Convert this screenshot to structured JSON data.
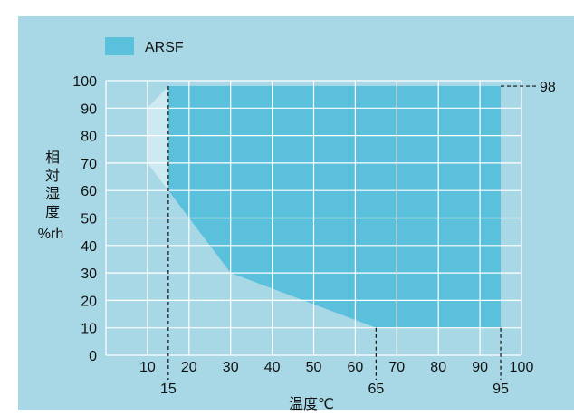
{
  "chart_data": {
    "type": "area",
    "title": "",
    "legend": {
      "placement": "top-left",
      "entries": [
        "ARSF"
      ]
    },
    "xlabel": "温度℃",
    "ylabel_chars": [
      "相",
      "対",
      "湿",
      "度"
    ],
    "ylabel_unit": "%rh",
    "xlim": [
      0,
      100
    ],
    "ylim": [
      0,
      100
    ],
    "x_ticks": [
      10,
      20,
      30,
      40,
      50,
      60,
      70,
      80,
      90,
      100
    ],
    "x_tick_labels": [
      "10",
      "20",
      "30",
      "40",
      "50",
      "60",
      "70",
      "80",
      "90",
      "100"
    ],
    "y_ticks": [
      0,
      10,
      20,
      30,
      40,
      50,
      60,
      70,
      80,
      90,
      100
    ],
    "y_tick_labels": [
      "0",
      "10",
      "20",
      "30",
      "40",
      "50",
      "60",
      "70",
      "80",
      "90",
      "100"
    ],
    "grid": true,
    "colors": {
      "background": "#a8d8e6",
      "area_light": "#cde9f1",
      "area_dark": "#5bc0dc",
      "grid": "#ffffff"
    },
    "series": [
      {
        "name": "ARSF",
        "x": [
          15,
          95,
          95,
          65,
          30,
          15
        ],
        "y": [
          98,
          98,
          10,
          10,
          30,
          60
        ]
      }
    ],
    "light_region": {
      "x": [
        10,
        15,
        95,
        95,
        65,
        30,
        15,
        10
      ],
      "y": [
        90,
        98,
        98,
        10,
        10,
        30,
        60,
        70
      ]
    },
    "reference_lines": [
      {
        "axis": "x",
        "value": 15,
        "label": "15"
      },
      {
        "axis": "x",
        "value": 65,
        "label": "65"
      },
      {
        "axis": "x",
        "value": 95,
        "label": "95"
      },
      {
        "axis": "y",
        "value": 98,
        "label": "98"
      }
    ]
  }
}
